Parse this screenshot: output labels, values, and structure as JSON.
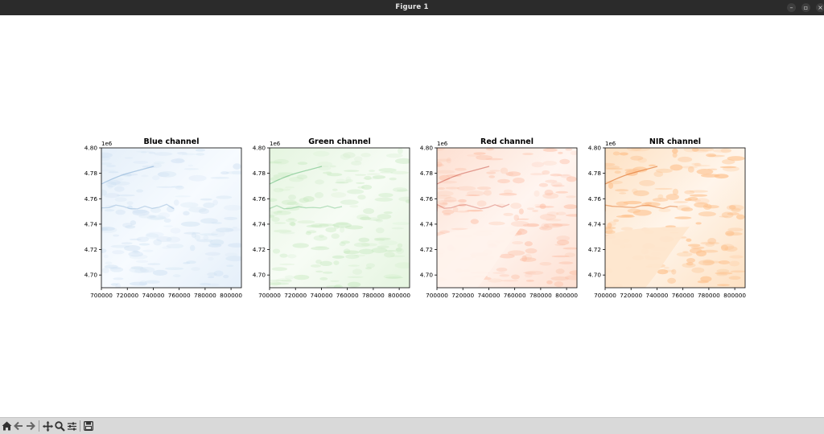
{
  "window": {
    "title": "Figure 1"
  },
  "figure": {
    "panels": [
      {
        "id": "blue",
        "title": "Blue channel",
        "cmap": [
          "#f7fbff",
          "#e5eff9",
          "#cfe1f2",
          "#6a9bc9"
        ]
      },
      {
        "id": "green",
        "title": "Green channel",
        "cmap": [
          "#f7fcf5",
          "#e5f5e0",
          "#c7e9c0",
          "#41ab5d"
        ]
      },
      {
        "id": "red",
        "title": "Red channel",
        "cmap": [
          "#fff5f0",
          "#fde0d2",
          "#fcbba1",
          "#c2372b"
        ]
      },
      {
        "id": "nir",
        "title": "NIR channel",
        "cmap": [
          "#fff5eb",
          "#fde1c3",
          "#fdc18d",
          "#e0732c"
        ]
      }
    ]
  },
  "chart_data": [
    {
      "type": "heatmap",
      "title": "Blue channel",
      "x_ticks": [
        "700000",
        "720000",
        "740000",
        "760000",
        "780000",
        "800000"
      ],
      "y_ticks": [
        "4.70",
        "4.72",
        "4.74",
        "4.76",
        "4.78",
        "4.80"
      ],
      "y_offset_label": "1e6",
      "xlim": [
        700000,
        808000
      ],
      "ylim": [
        4.69,
        4.8
      ]
    },
    {
      "type": "heatmap",
      "title": "Green channel",
      "x_ticks": [
        "700000",
        "720000",
        "740000",
        "760000",
        "780000",
        "800000"
      ],
      "y_ticks": [
        "4.70",
        "4.72",
        "4.74",
        "4.76",
        "4.78",
        "4.80"
      ],
      "y_offset_label": "1e6",
      "xlim": [
        700000,
        808000
      ],
      "ylim": [
        4.69,
        4.8
      ]
    },
    {
      "type": "heatmap",
      "title": "Red channel",
      "x_ticks": [
        "700000",
        "720000",
        "740000",
        "760000",
        "780000",
        "800000"
      ],
      "y_ticks": [
        "4.70",
        "4.72",
        "4.74",
        "4.76",
        "4.78",
        "4.80"
      ],
      "y_offset_label": "1e6",
      "xlim": [
        700000,
        808000
      ],
      "ylim": [
        4.69,
        4.8
      ]
    },
    {
      "type": "heatmap",
      "title": "NIR channel",
      "x_ticks": [
        "700000",
        "720000",
        "740000",
        "760000",
        "780000",
        "800000"
      ],
      "y_ticks": [
        "4.70",
        "4.72",
        "4.74",
        "4.76",
        "4.78",
        "4.80"
      ],
      "y_offset_label": "1e6",
      "xlim": [
        700000,
        808000
      ],
      "ylim": [
        4.69,
        4.8
      ]
    }
  ],
  "toolbar": {
    "tools": [
      {
        "name": "home-icon"
      },
      {
        "name": "back-icon"
      },
      {
        "name": "forward-icon"
      },
      {
        "name": "pan-icon"
      },
      {
        "name": "zoom-icon"
      },
      {
        "name": "configure-subplots-icon"
      },
      {
        "name": "save-icon"
      }
    ]
  }
}
